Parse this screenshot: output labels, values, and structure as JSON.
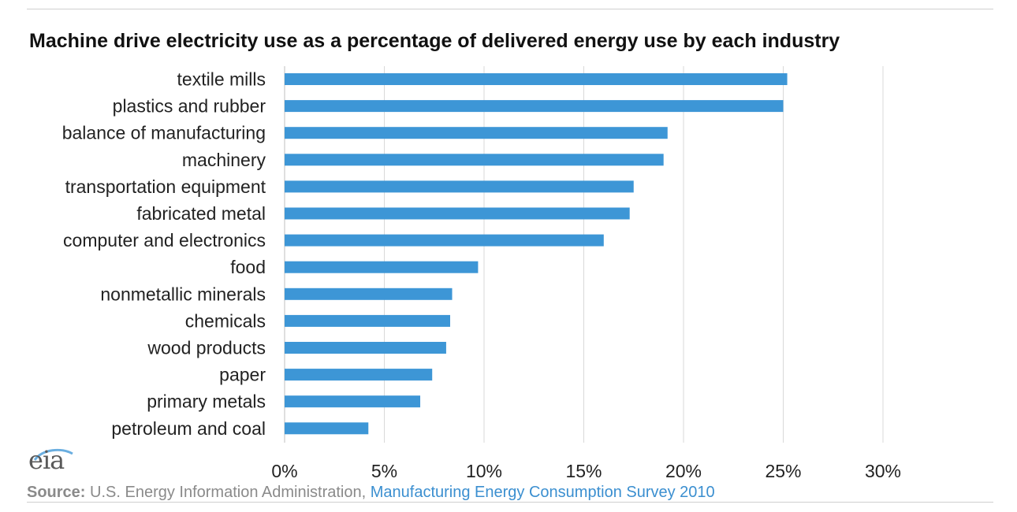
{
  "chart_data": {
    "type": "bar",
    "orientation": "horizontal",
    "title": "Machine drive electricity use as a percentage  of delivered energy  use by each industry",
    "categories": [
      "textile mills",
      "plastics and rubber",
      "balance of manufacturing",
      "machinery",
      "transportation equipment",
      "fabricated metal",
      "computer and electronics",
      "food",
      "nonmetallic minerals",
      "chemicals",
      "wood products",
      "paper",
      "primary metals",
      "petroleum and coal"
    ],
    "values": [
      25.2,
      25.0,
      19.2,
      19.0,
      17.5,
      17.3,
      16.0,
      9.7,
      8.4,
      8.3,
      8.1,
      7.4,
      6.8,
      4.2
    ],
    "xlim": [
      0,
      30
    ],
    "x_ticks": [
      0,
      5,
      10,
      15,
      20,
      25,
      30
    ],
    "x_tick_labels": [
      "0%",
      "5%",
      "10%",
      "15%",
      "20%",
      "25%",
      "30%"
    ],
    "grid": "vertical",
    "bar_color": "#3d96d6"
  },
  "logo": {
    "text": "eia"
  },
  "source": {
    "label": "Source:",
    "text": " U.S. Energy Information Administration, ",
    "link_text": "Manufacturing Energy Consumption Survey 2010"
  }
}
